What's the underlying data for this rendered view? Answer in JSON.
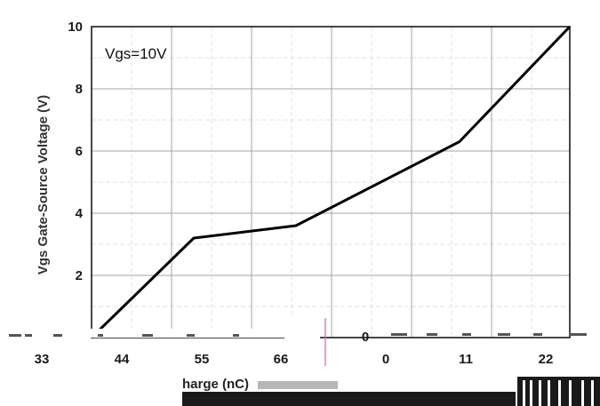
{
  "chart_data": {
    "type": "line",
    "title": "",
    "ylabel": "Vgs Gate-Source Voltage (V)",
    "annotation": "Vgs=10V",
    "ylim": [
      0,
      10
    ],
    "y_ticks": [
      "2",
      "4",
      "6",
      "8",
      "10"
    ],
    "x_tick_labels": [
      "33",
      "44",
      "55",
      "66",
      "0",
      "11",
      "22"
    ],
    "x_label_fragment": "harge (nC)",
    "x_zero_fragment": "0",
    "series": [
      {
        "points": [
          [
            -1.0,
            0.0
          ],
          [
            0.0,
            3.2
          ],
          [
            1.0,
            3.6
          ],
          [
            2.6,
            6.3
          ],
          [
            3.68,
            10.0
          ]
        ]
      }
    ]
  }
}
